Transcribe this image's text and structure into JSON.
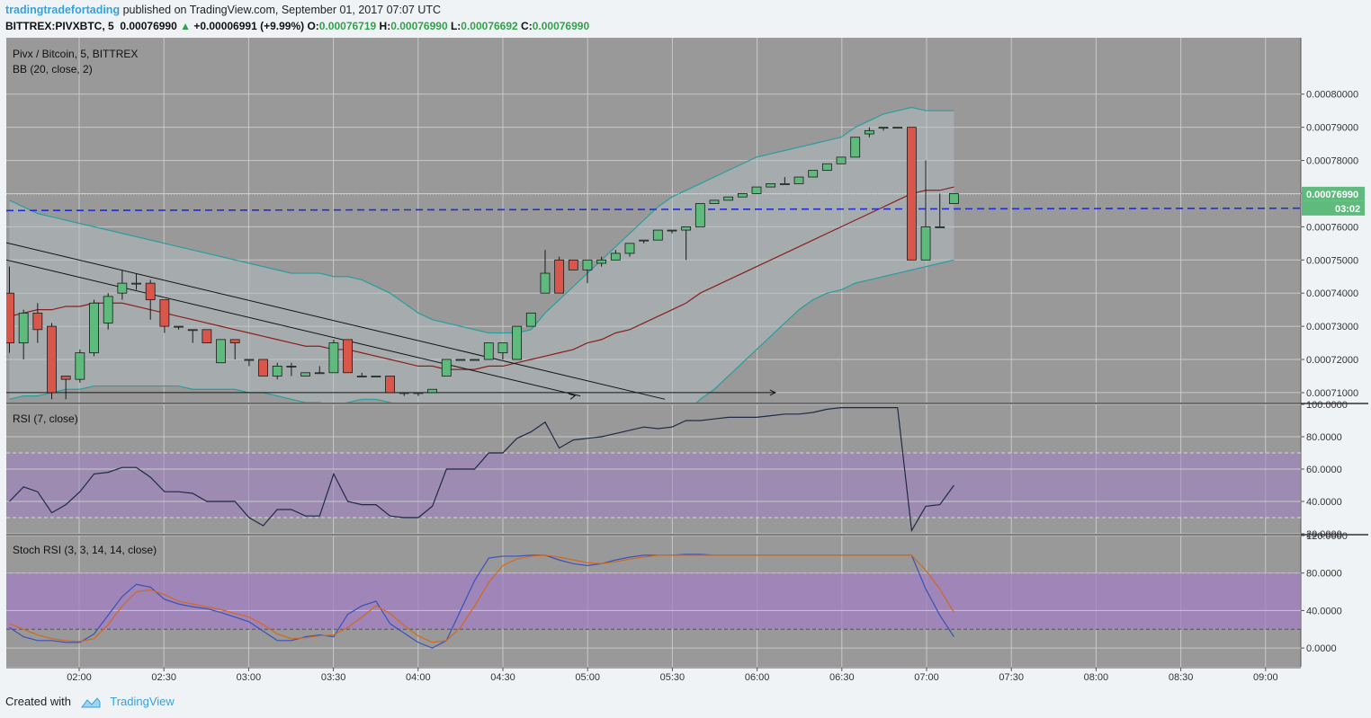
{
  "header": {
    "author": "tradingtradefortading",
    "published": "published on TradingView.com, September 01, 2017 07:07 UTC"
  },
  "ticker": {
    "symbol": "BITTREX:PIVXBTC, 5",
    "last": "0.00076990",
    "change_arrow": "▲",
    "change": "+0.00006991 (+9.99%)",
    "open_label": "O:",
    "open": "0.00076719",
    "high_label": "H:",
    "high": "0.00076990",
    "low_label": "L:",
    "low": "0.00076692",
    "close_label": "C:",
    "close": "0.00076990"
  },
  "footer": {
    "created_with": "Created with",
    "brand": "TradingView"
  },
  "colors": {
    "pane_bg": "#999999",
    "grid": "#c8c8c8",
    "up_candle": "#5fba7d",
    "down_candle": "#d9574a",
    "bb_band": "#2a9d9d",
    "bb_basis": "#8b1e1e",
    "dashed_line": "#1e2dd6",
    "rsi_line": "#1f2a44",
    "stoch_k": "#3a52b8",
    "stoch_d": "#d2691e",
    "overbought_zone": "#a37fc4",
    "price_label_bg": "#5fba7d"
  },
  "chart_data": [
    {
      "type": "candlestick",
      "title": "Pivx / Bitcoin, 5, BITTREX",
      "indicator_label": "BB (20, close, 2)",
      "x_tick_labels": [
        "02:00",
        "02:30",
        "03:00",
        "03:30",
        "04:00",
        "04:30",
        "05:00",
        "05:30",
        "06:00",
        "06:30",
        "07:00",
        "07:30",
        "08:00",
        "08:30",
        "09:00"
      ],
      "y_tick_labels": [
        "0.00080000",
        "0.00079000",
        "0.00078000",
        "0.00077000",
        "0.00076000",
        "0.00075000",
        "0.00074000",
        "0.00073000",
        "0.00072000",
        "0.00071000"
      ],
      "ylim": [
        0.000707,
        0.000817
      ],
      "last_price_label": "0.00076990",
      "countdown_label": "03:02",
      "candles": [
        {
          "o": 0.00074,
          "h": 0.000748,
          "l": 0.000722,
          "c": 0.000725
        },
        {
          "o": 0.000725,
          "h": 0.000735,
          "l": 0.00072,
          "c": 0.000734
        },
        {
          "o": 0.000734,
          "h": 0.000737,
          "l": 0.000725,
          "c": 0.000729
        },
        {
          "o": 0.00073,
          "h": 0.000731,
          "l": 0.000708,
          "c": 0.00071
        },
        {
          "o": 0.000715,
          "h": 0.000715,
          "l": 0.000708,
          "c": 0.000714
        },
        {
          "o": 0.000714,
          "h": 0.000723,
          "l": 0.000713,
          "c": 0.000722
        },
        {
          "o": 0.000722,
          "h": 0.000738,
          "l": 0.000721,
          "c": 0.000737
        },
        {
          "o": 0.000731,
          "h": 0.00074,
          "l": 0.000729,
          "c": 0.000739
        },
        {
          "o": 0.00074,
          "h": 0.000747,
          "l": 0.000738,
          "c": 0.000743
        },
        {
          "o": 0.000743,
          "h": 0.000746,
          "l": 0.000741,
          "c": 0.000743
        },
        {
          "o": 0.000743,
          "h": 0.000744,
          "l": 0.000732,
          "c": 0.000738
        },
        {
          "o": 0.000738,
          "h": 0.000738,
          "l": 0.000728,
          "c": 0.00073
        },
        {
          "o": 0.00073,
          "h": 0.00073,
          "l": 0.000729,
          "c": 0.00073
        },
        {
          "o": 0.000729,
          "h": 0.000729,
          "l": 0.000725,
          "c": 0.000729
        },
        {
          "o": 0.000729,
          "h": 0.000729,
          "l": 0.000725,
          "c": 0.000725
        },
        {
          "o": 0.000719,
          "h": 0.000726,
          "l": 0.000719,
          "c": 0.000726
        },
        {
          "o": 0.000726,
          "h": 0.000726,
          "l": 0.00072,
          "c": 0.000725
        },
        {
          "o": 0.00072,
          "h": 0.00072,
          "l": 0.000718,
          "c": 0.00072
        },
        {
          "o": 0.00072,
          "h": 0.00072,
          "l": 0.000715,
          "c": 0.000715
        },
        {
          "o": 0.000715,
          "h": 0.000719,
          "l": 0.000714,
          "c": 0.000718
        },
        {
          "o": 0.000718,
          "h": 0.000719,
          "l": 0.000715,
          "c": 0.000718
        },
        {
          "o": 0.000715,
          "h": 0.000716,
          "l": 0.000715,
          "c": 0.000716
        },
        {
          "o": 0.000716,
          "h": 0.000718,
          "l": 0.000716,
          "c": 0.000716
        },
        {
          "o": 0.000716,
          "h": 0.000726,
          "l": 0.000716,
          "c": 0.000725
        },
        {
          "o": 0.000726,
          "h": 0.000726,
          "l": 0.000716,
          "c": 0.000716
        },
        {
          "o": 0.000715,
          "h": 0.000716,
          "l": 0.000715,
          "c": 0.000715
        },
        {
          "o": 0.000715,
          "h": 0.000715,
          "l": 0.000715,
          "c": 0.000715
        },
        {
          "o": 0.000715,
          "h": 0.000715,
          "l": 0.00071,
          "c": 0.00071
        },
        {
          "o": 0.00071,
          "h": 0.00071,
          "l": 0.000709,
          "c": 0.00071
        },
        {
          "o": 0.00071,
          "h": 0.00071,
          "l": 0.000709,
          "c": 0.00071
        },
        {
          "o": 0.00071,
          "h": 0.000711,
          "l": 0.00071,
          "c": 0.000711
        },
        {
          "o": 0.000715,
          "h": 0.00072,
          "l": 0.000715,
          "c": 0.00072
        },
        {
          "o": 0.00072,
          "h": 0.00072,
          "l": 0.00072,
          "c": 0.00072
        },
        {
          "o": 0.00072,
          "h": 0.00072,
          "l": 0.00072,
          "c": 0.00072
        },
        {
          "o": 0.00072,
          "h": 0.000725,
          "l": 0.00072,
          "c": 0.000725
        },
        {
          "o": 0.000722,
          "h": 0.000725,
          "l": 0.00072,
          "c": 0.000725
        },
        {
          "o": 0.00072,
          "h": 0.00073,
          "l": 0.00072,
          "c": 0.00073
        },
        {
          "o": 0.00073,
          "h": 0.000734,
          "l": 0.00073,
          "c": 0.000734
        },
        {
          "o": 0.00074,
          "h": 0.000753,
          "l": 0.00074,
          "c": 0.000746
        },
        {
          "o": 0.00075,
          "h": 0.000751,
          "l": 0.00074,
          "c": 0.00074
        },
        {
          "o": 0.00075,
          "h": 0.00075,
          "l": 0.000747,
          "c": 0.000747
        },
        {
          "o": 0.000747,
          "h": 0.00075,
          "l": 0.000743,
          "c": 0.00075
        },
        {
          "o": 0.000749,
          "h": 0.000751,
          "l": 0.000748,
          "c": 0.00075
        },
        {
          "o": 0.00075,
          "h": 0.000753,
          "l": 0.00075,
          "c": 0.000752
        },
        {
          "o": 0.000752,
          "h": 0.000755,
          "l": 0.000751,
          "c": 0.000755
        },
        {
          "o": 0.000756,
          "h": 0.000756,
          "l": 0.000755,
          "c": 0.000756
        },
        {
          "o": 0.000756,
          "h": 0.000759,
          "l": 0.000756,
          "c": 0.000759
        },
        {
          "o": 0.000759,
          "h": 0.000759,
          "l": 0.000758,
          "c": 0.000759
        },
        {
          "o": 0.000759,
          "h": 0.00076,
          "l": 0.00075,
          "c": 0.00076
        },
        {
          "o": 0.00076,
          "h": 0.000767,
          "l": 0.00076,
          "c": 0.000767
        },
        {
          "o": 0.000767,
          "h": 0.000768,
          "l": 0.000767,
          "c": 0.000768
        },
        {
          "o": 0.000768,
          "h": 0.000769,
          "l": 0.000768,
          "c": 0.000769
        },
        {
          "o": 0.000769,
          "h": 0.00077,
          "l": 0.000769,
          "c": 0.00077
        },
        {
          "o": 0.00077,
          "h": 0.000772,
          "l": 0.00077,
          "c": 0.000772
        },
        {
          "o": 0.000772,
          "h": 0.000773,
          "l": 0.000772,
          "c": 0.000773
        },
        {
          "o": 0.000773,
          "h": 0.000775,
          "l": 0.000773,
          "c": 0.000773
        },
        {
          "o": 0.000773,
          "h": 0.000775,
          "l": 0.000773,
          "c": 0.000775
        },
        {
          "o": 0.000775,
          "h": 0.000777,
          "l": 0.000775,
          "c": 0.000777
        },
        {
          "o": 0.000777,
          "h": 0.000779,
          "l": 0.000777,
          "c": 0.000779
        },
        {
          "o": 0.000779,
          "h": 0.000781,
          "l": 0.000779,
          "c": 0.000781
        },
        {
          "o": 0.000781,
          "h": 0.000787,
          "l": 0.000781,
          "c": 0.000787
        },
        {
          "o": 0.000788,
          "h": 0.00079,
          "l": 0.000787,
          "c": 0.000789
        },
        {
          "o": 0.00079,
          "h": 0.00079,
          "l": 0.000789,
          "c": 0.00079
        },
        {
          "o": 0.00079,
          "h": 0.00079,
          "l": 0.00079,
          "c": 0.00079
        },
        {
          "o": 0.00079,
          "h": 0.00079,
          "l": 0.00075,
          "c": 0.00075
        },
        {
          "o": 0.00075,
          "h": 0.00078,
          "l": 0.00075,
          "c": 0.00076
        },
        {
          "o": 0.00076,
          "h": 0.00077,
          "l": 0.00076,
          "c": 0.00076
        },
        {
          "o": 0.000767,
          "h": 0.00077,
          "l": 0.000767,
          "c": 0.00077
        }
      ],
      "bb_upper": [
        0.000768,
        0.000766,
        0.000764,
        0.000763,
        0.000762,
        0.000761,
        0.00076,
        0.000759,
        0.000758,
        0.000757,
        0.000756,
        0.000755,
        0.000754,
        0.000753,
        0.000752,
        0.000751,
        0.00075,
        0.000749,
        0.000748,
        0.000747,
        0.000746,
        0.000746,
        0.000746,
        0.000745,
        0.000745,
        0.000744,
        0.000742,
        0.00074,
        0.000737,
        0.000734,
        0.000732,
        0.000731,
        0.00073,
        0.000729,
        0.000728,
        0.000728,
        0.000728,
        0.000729,
        0.000734,
        0.000738,
        0.000742,
        0.000746,
        0.00075,
        0.000754,
        0.000758,
        0.000762,
        0.000766,
        0.000769,
        0.000771,
        0.000773,
        0.000775,
        0.000777,
        0.000779,
        0.000781,
        0.000782,
        0.000783,
        0.000784,
        0.000785,
        0.000786,
        0.000787,
        0.00079,
        0.000792,
        0.000794,
        0.000795,
        0.000796,
        0.000795,
        0.000795,
        0.000795
      ],
      "bb_basis": [
        0.000733,
        0.000734,
        0.000735,
        0.000735,
        0.000736,
        0.000736,
        0.000737,
        0.000737,
        0.000737,
        0.000736,
        0.000735,
        0.000734,
        0.000733,
        0.000732,
        0.000731,
        0.00073,
        0.000729,
        0.000728,
        0.000727,
        0.000726,
        0.000725,
        0.000724,
        0.000724,
        0.000723,
        0.000723,
        0.000722,
        0.000721,
        0.00072,
        0.000719,
        0.000718,
        0.000718,
        0.000717,
        0.000717,
        0.000717,
        0.000718,
        0.000718,
        0.000719,
        0.00072,
        0.000721,
        0.000722,
        0.000723,
        0.000725,
        0.000726,
        0.000728,
        0.000729,
        0.000731,
        0.000733,
        0.000735,
        0.000737,
        0.00074,
        0.000742,
        0.000744,
        0.000746,
        0.000748,
        0.00075,
        0.000752,
        0.000754,
        0.000756,
        0.000758,
        0.00076,
        0.000762,
        0.000764,
        0.000766,
        0.000768,
        0.00077,
        0.000771,
        0.000771,
        0.000772
      ],
      "bb_lower": [
        0.000708,
        0.000709,
        0.000709,
        0.00071,
        0.000711,
        0.000711,
        0.000712,
        0.000712,
        0.000712,
        0.000712,
        0.000712,
        0.000712,
        0.000712,
        0.000711,
        0.000711,
        0.000711,
        0.000711,
        0.00071,
        0.00071,
        0.000709,
        0.000708,
        0.000707,
        0.000707,
        0.000706,
        0.000707,
        0.000708,
        0.000708,
        0.000707,
        0.000706,
        0.000705,
        0.000704,
        0.000703,
        0.000703,
        0.000703,
        0.000703,
        0.000703,
        0.000703,
        0.000703,
        0.000703,
        0.000702,
        0.000701,
        0.0007,
        0.0007,
        0.0007,
        0.0007,
        0.0007,
        0.0007,
        0.000702,
        0.000704,
        0.000708,
        0.000711,
        0.000715,
        0.000719,
        0.000723,
        0.000727,
        0.000731,
        0.000735,
        0.000738,
        0.00074,
        0.000741,
        0.000743,
        0.000744,
        0.000745,
        0.000746,
        0.000747,
        0.000748,
        0.000749,
        0.00075
      ],
      "horizontal_dashed_line": [
        0.0007649,
        0.0007656
      ],
      "trendlines": [
        {
          "from_x": 0,
          "from_y": 0.0007552,
          "to_x": 46.5,
          "to_y": 0.000708
        },
        {
          "from_x": 0,
          "from_y": 0.00075,
          "to_x": 40.5,
          "to_y": 0.000709
        }
      ],
      "horizontal_arrow": {
        "from_x": 0,
        "to_x": 50.5,
        "y": 0.00071
      }
    },
    {
      "type": "line",
      "title": "RSI (7, close)",
      "y_tick_labels": [
        "100.0000",
        "80.0000",
        "60.0000",
        "40.0000",
        "20.0000"
      ],
      "ylim": [
        20,
        100
      ],
      "band": [
        30,
        70
      ],
      "values": [
        40,
        49,
        46,
        33,
        38,
        46,
        57,
        58,
        61,
        61,
        55,
        46,
        46,
        45,
        40,
        40,
        40,
        30,
        25,
        35,
        35,
        31,
        31,
        57,
        40,
        38,
        38,
        31,
        30,
        30,
        37,
        60,
        60,
        60,
        70,
        70,
        79,
        83,
        89,
        73,
        78,
        79,
        80,
        82,
        84,
        86,
        85,
        86,
        90,
        90,
        91,
        92,
        92,
        92,
        93,
        94,
        94,
        95,
        97,
        98,
        98,
        98,
        98,
        98,
        22,
        37,
        38,
        50
      ]
    },
    {
      "type": "line",
      "title": "Stoch RSI (3, 3, 14, 14, close)",
      "y_tick_labels": [
        "120.0000",
        "80.0000",
        "40.0000",
        "0.0000"
      ],
      "ylim": [
        -20,
        120
      ],
      "band": [
        20,
        80
      ],
      "series": [
        {
          "values": [
            22,
            12,
            8,
            8,
            6,
            6,
            15,
            35,
            55,
            68,
            65,
            52,
            47,
            44,
            42,
            38,
            33,
            28,
            18,
            8,
            8,
            12,
            14,
            12,
            36,
            45,
            50,
            26,
            16,
            6,
            0,
            8,
            40,
            72,
            96,
            98,
            98,
            99,
            99,
            94,
            90,
            88,
            90,
            94,
            97,
            99,
            99,
            99,
            100,
            100,
            99,
            99,
            99,
            99,
            99,
            99,
            99,
            99,
            99,
            99,
            99,
            99,
            99,
            99,
            99,
            63,
            35,
            12
          ]
        },
        {
          "values": [
            26,
            20,
            14,
            10,
            8,
            7,
            10,
            25,
            45,
            60,
            62,
            57,
            50,
            47,
            44,
            41,
            37,
            33,
            25,
            15,
            10,
            11,
            13,
            14,
            22,
            33,
            45,
            37,
            24,
            13,
            6,
            8,
            22,
            45,
            70,
            88,
            95,
            98,
            99,
            97,
            94,
            91,
            90,
            92,
            95,
            97,
            99,
            99,
            99,
            99,
            99,
            99,
            99,
            99,
            99,
            99,
            99,
            99,
            99,
            99,
            99,
            99,
            99,
            99,
            99,
            83,
            63,
            38
          ]
        }
      ]
    }
  ]
}
